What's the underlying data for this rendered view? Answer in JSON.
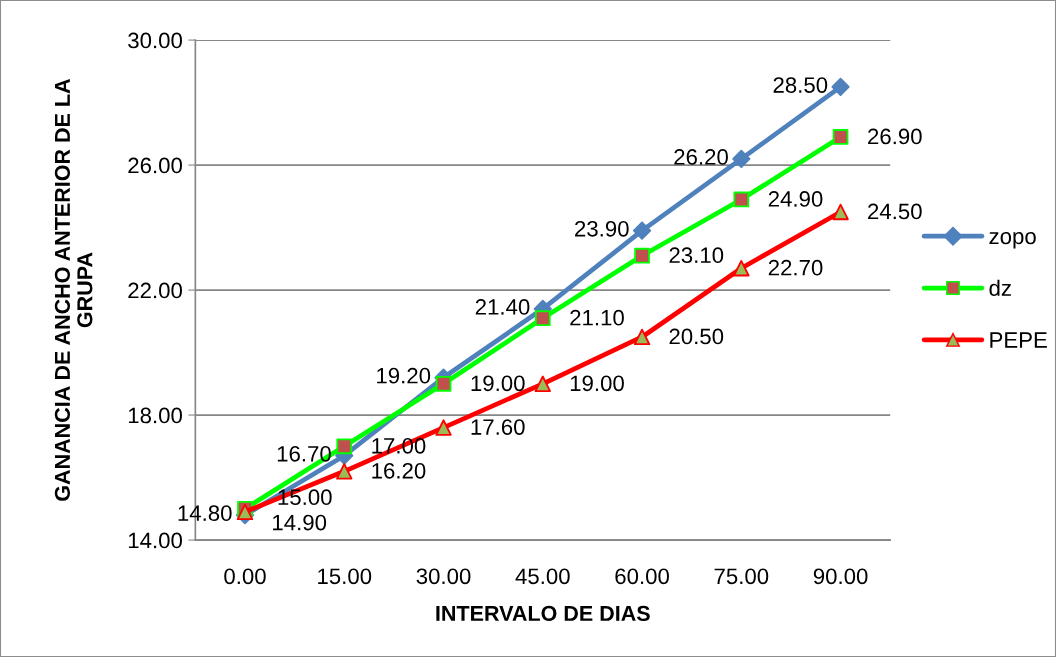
{
  "chart_data": {
    "type": "line",
    "xlabel": "INTERVALO DE DIAS",
    "ylabel": "GANANCIA DE ANCHO ANTERIOR DE LA\nGRUPA",
    "categories": [
      "0.00",
      "15.00",
      "30.00",
      "45.00",
      "60.00",
      "75.00",
      "90.00"
    ],
    "series": [
      {
        "name": "zopo",
        "color": "#4f81bd",
        "marker": "diamond",
        "values": [
          14.8,
          16.7,
          19.2,
          21.4,
          23.9,
          26.2,
          28.5
        ],
        "value_labels": [
          "14.80",
          "16.70",
          "19.20",
          "21.40",
          "23.90",
          "26.20",
          "28.50"
        ]
      },
      {
        "name": "dz",
        "color": "#00ff00",
        "colors": [
          "#c0504d",
          "#c0504d",
          "#c0504d",
          "#c0504d",
          "#c0504d",
          "#c0504d",
          "#c0504d"
        ],
        "marker": "square",
        "values": [
          15.0,
          17.0,
          19.0,
          21.1,
          23.1,
          24.9,
          26.9
        ],
        "value_labels": [
          "15.00",
          "17.00",
          "19.00",
          "21.10",
          "23.10",
          "24.90",
          "26.90"
        ]
      },
      {
        "name": "PEPE",
        "color": "#ff0000",
        "colors": [
          "#9bbb59",
          "#9bbb59",
          "#9bbb59",
          "#9bbb59",
          "#9bbb59",
          "#9bbb59",
          "#9bbb59"
        ],
        "marker": "triangle",
        "values": [
          14.9,
          16.2,
          17.6,
          19.0,
          20.5,
          22.7,
          24.5
        ],
        "value_labels": [
          "14.90",
          "16.20",
          "17.60",
          "19.00",
          "20.50",
          "22.70",
          "24.50"
        ]
      }
    ],
    "ylim": [
      14,
      30
    ],
    "yticks": [
      {
        "value": 14,
        "label": "14.00"
      },
      {
        "value": 18,
        "label": "18.00"
      },
      {
        "value": 22,
        "label": "22.00"
      },
      {
        "value": 26,
        "label": "26.00"
      },
      {
        "value": 30,
        "label": "30.00"
      }
    ],
    "grid": "y",
    "legend": "right",
    "line_style": "solid"
  }
}
